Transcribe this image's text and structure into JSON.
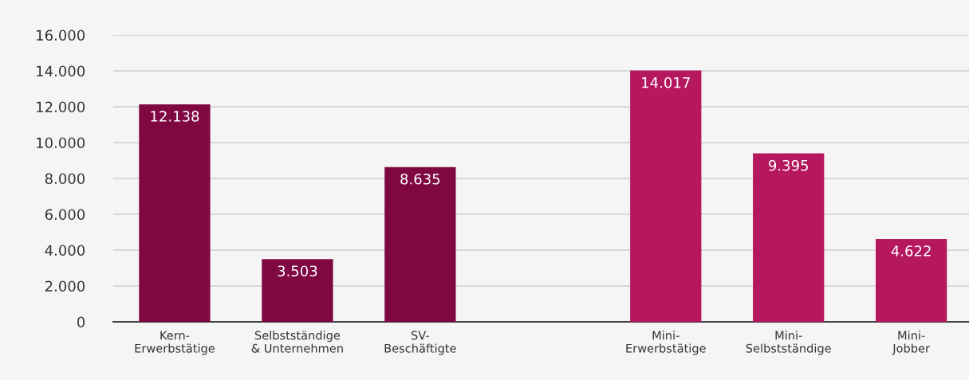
{
  "chart_data": {
    "type": "bar",
    "categories": [
      "Kern-\nErwerbstätige",
      "Selbstständige\n& Unternehmen",
      "SV-\nBeschäftigte",
      null,
      "Mini-\nErwerbstätige",
      "Mini-\nSelbstständige",
      "Mini-\nJobber"
    ],
    "values": [
      12138,
      3503,
      8635,
      null,
      14017,
      9395,
      4622
    ],
    "value_labels": [
      "12.138",
      "3.503",
      "8.635",
      null,
      "14.017",
      "9.395",
      "4.622"
    ],
    "colors": [
      "#7f0842",
      "#7f0842",
      "#7f0842",
      null,
      "#b5185f",
      "#b5185f",
      "#b5185f"
    ],
    "ylim": [
      0,
      16000
    ],
    "yticks": [
      {
        "value": 0,
        "label": "0"
      },
      {
        "value": 2000,
        "label": "2.000"
      },
      {
        "value": 4000,
        "label": "4.000"
      },
      {
        "value": 6000,
        "label": "6.000"
      },
      {
        "value": 8000,
        "label": "8.000"
      },
      {
        "value": 10000,
        "label": "10.000"
      },
      {
        "value": 12000,
        "label": "12.000"
      },
      {
        "value": 14000,
        "label": "14.000"
      },
      {
        "value": 16000,
        "label": "16.000"
      }
    ],
    "grid": "y",
    "legend": false
  }
}
